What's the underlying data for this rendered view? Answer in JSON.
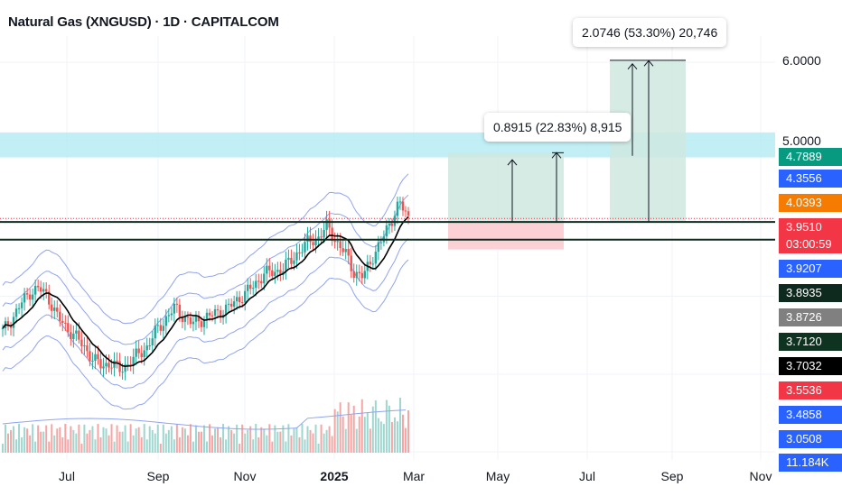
{
  "header": {
    "title": "Natural Gas (XNGUSD) · 1D · CAPITALCOM"
  },
  "colors": {
    "resistance_zone": "#b2ebf2",
    "target_zone": "#cfe7df",
    "stop_zone": "#fbd1d5",
    "bull_candle": "#26a69a",
    "bear_candle": "#ef5350",
    "ma_line": "#000000",
    "band_line": "#90a4f0",
    "support_line": "#0e2a1f"
  },
  "price_axis": {
    "labels": [
      "6.0000",
      "5.0000"
    ]
  },
  "price_badges": [
    {
      "value": "4.7889",
      "bg": "#089981"
    },
    {
      "value": "4.3556",
      "bg": "#2962ff"
    },
    {
      "value": "4.0393",
      "bg": "#f57c00"
    },
    {
      "value": "3.9510",
      "bg": "#f23645"
    },
    {
      "value": "03:00:59",
      "bg": "#f23645"
    },
    {
      "value": "3.9207",
      "bg": "#2962ff"
    },
    {
      "value": "3.8935",
      "bg": "#0e2a1f"
    },
    {
      "value": "3.8726",
      "bg": "#808080"
    },
    {
      "value": "3.7120",
      "bg": "#0e3320"
    },
    {
      "value": "3.7032",
      "bg": "#000000"
    },
    {
      "value": "3.5536",
      "bg": "#f23645"
    },
    {
      "value": "3.4858",
      "bg": "#2962ff"
    },
    {
      "value": "3.0508",
      "bg": "#2962ff"
    },
    {
      "value": "11.184K",
      "bg": "#2962ff"
    }
  ],
  "time_axis": {
    "labels": [
      "Jul",
      "Sep",
      "Nov",
      "2025",
      "Mar",
      "May",
      "Jul",
      "Sep",
      "Nov"
    ]
  },
  "measure_tools": [
    {
      "label": "0.8915 (22.83%) 8,915"
    },
    {
      "label": "2.0746 (53.30%) 20,746"
    }
  ],
  "chart_data": {
    "type": "candlestick",
    "symbol": "XNGUSD",
    "interval": "1D",
    "y_axis": {
      "min": 2.0,
      "max": 6.3
    },
    "last_price": 3.951,
    "support_lines": [
      3.953,
      3.725
    ],
    "resistance_zone": [
      4.78,
      5.1
    ],
    "targets": [
      {
        "from": 3.95,
        "to": 4.8415,
        "change": 0.8915,
        "percent": 22.83
      },
      {
        "from": 3.95,
        "to": 6.0246,
        "change": 2.0746,
        "percent": 53.3
      }
    ],
    "closes_approx": [
      2.55,
      2.7,
      2.9,
      3.05,
      3.1,
      3.0,
      2.75,
      2.6,
      2.5,
      2.35,
      2.2,
      2.1,
      2.15,
      2.05,
      2.15,
      2.25,
      2.35,
      2.55,
      2.7,
      2.85,
      2.75,
      2.65,
      2.7,
      2.75,
      2.8,
      2.85,
      2.95,
      3.05,
      3.15,
      3.3,
      3.3,
      3.35,
      3.45,
      3.6,
      3.7,
      3.75,
      3.9,
      3.7,
      3.55,
      3.3,
      3.25,
      3.5,
      3.7,
      3.95,
      4.2,
      4.0
    ]
  }
}
